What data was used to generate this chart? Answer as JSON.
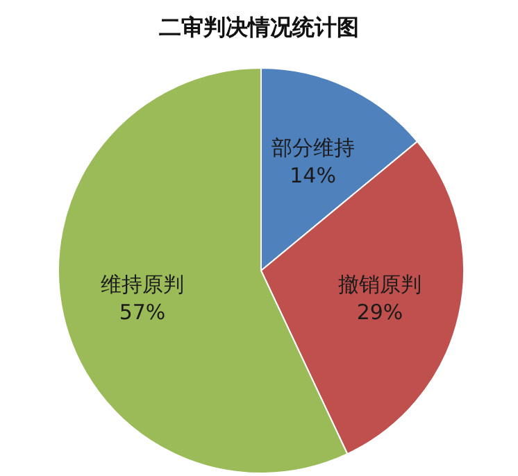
{
  "chart_data": {
    "type": "pie",
    "title": "二审判决情况统计图",
    "categories": [
      "部分维持",
      "撤销原判",
      "维持原判"
    ],
    "values": [
      14,
      29,
      57
    ],
    "value_labels": [
      "14%",
      "29%",
      "57%"
    ],
    "colors": [
      "#4f81bd",
      "#c0504d",
      "#9bbb59"
    ]
  }
}
